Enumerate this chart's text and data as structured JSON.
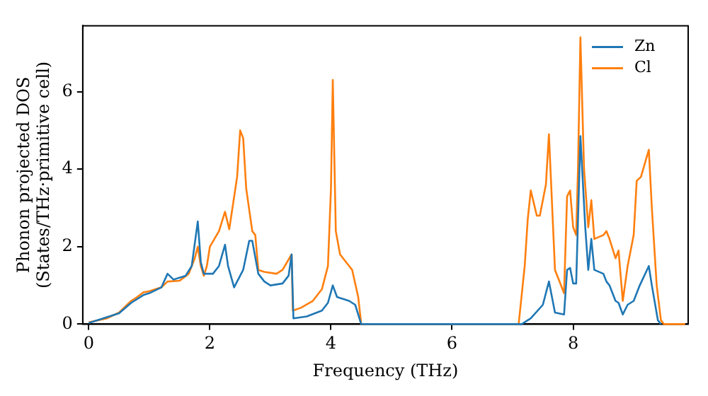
{
  "chart_data": {
    "type": "line",
    "xlabel": "Frequency (THz)",
    "ylabel": "Phonon projected DOS\n(States/THz·primitive cell)",
    "xlim": [
      -0.1,
      9.9
    ],
    "xticks": [
      0,
      2,
      4,
      6,
      8
    ],
    "ylim": [
      0,
      7.7
    ],
    "yticks": [
      0,
      2,
      4,
      6
    ],
    "grid": false,
    "legend": "top right",
    "marker": "none",
    "line_style": "solid",
    "series": [
      {
        "name": "Zn",
        "color": "#1f77b4",
        "x": [
          0,
          0.5,
          0.7,
          0.9,
          1.0,
          1.2,
          1.3,
          1.4,
          1.6,
          1.7,
          1.8,
          1.85,
          1.9,
          2.05,
          2.15,
          2.25,
          2.3,
          2.4,
          2.55,
          2.65,
          2.7,
          2.8,
          2.9,
          3.0,
          3.2,
          3.3,
          3.35,
          3.38,
          3.6,
          3.85,
          3.95,
          4.03,
          4.1,
          4.3,
          4.4,
          4.5,
          7.15,
          7.3,
          7.5,
          7.6,
          7.7,
          7.85,
          7.9,
          7.95,
          8.0,
          8.05,
          8.12,
          8.2,
          8.25,
          8.3,
          8.35,
          8.5,
          8.55,
          8.6,
          8.7,
          8.75,
          8.82,
          8.9,
          9.0,
          9.1,
          9.25,
          9.3,
          9.4,
          9.45
        ],
        "values": [
          0.03,
          0.28,
          0.55,
          0.75,
          0.8,
          0.95,
          1.3,
          1.15,
          1.25,
          1.5,
          2.65,
          1.6,
          1.3,
          1.3,
          1.5,
          2.05,
          1.5,
          0.95,
          1.4,
          2.15,
          2.15,
          1.3,
          1.1,
          1.0,
          1.05,
          1.25,
          1.8,
          0.15,
          0.2,
          0.35,
          0.55,
          1.0,
          0.7,
          0.6,
          0.5,
          0,
          0,
          0.15,
          0.5,
          1.1,
          0.3,
          0.25,
          1.4,
          1.45,
          1.05,
          1.05,
          4.85,
          2.5,
          1.4,
          2.2,
          1.4,
          1.3,
          1.1,
          1.0,
          0.6,
          0.55,
          0.25,
          0.5,
          0.6,
          1.0,
          1.5,
          1.0,
          0.1,
          0
        ]
      },
      {
        "name": "Cl",
        "color": "#ff7f0e",
        "x": [
          0,
          0.3,
          0.5,
          0.6,
          0.7,
          0.8,
          0.9,
          1.0,
          1.2,
          1.3,
          1.5,
          1.65,
          1.75,
          1.8,
          1.85,
          1.9,
          1.95,
          2.0,
          2.15,
          2.25,
          2.32,
          2.45,
          2.5,
          2.55,
          2.6,
          2.7,
          2.75,
          2.8,
          2.9,
          3.1,
          3.2,
          3.35,
          3.37,
          3.5,
          3.7,
          3.85,
          3.95,
          4.0,
          4.03,
          4.08,
          4.15,
          4.3,
          4.35,
          4.45,
          4.5,
          7.1,
          7.2,
          7.25,
          7.3,
          7.4,
          7.45,
          7.55,
          7.6,
          7.7,
          7.85,
          7.9,
          7.95,
          8.0,
          8.05,
          8.08,
          8.12,
          8.18,
          8.25,
          8.3,
          8.35,
          8.5,
          8.55,
          8.6,
          8.7,
          8.75,
          8.82,
          8.9,
          9.0,
          9.05,
          9.12,
          9.25,
          9.3,
          9.38,
          9.45,
          9.5,
          9.85
        ],
        "values": [
          0.05,
          0.15,
          0.3,
          0.45,
          0.6,
          0.7,
          0.82,
          0.85,
          0.95,
          1.1,
          1.12,
          1.3,
          1.7,
          2.0,
          1.5,
          1.25,
          1.5,
          2.0,
          2.4,
          2.9,
          2.45,
          3.8,
          5.0,
          4.8,
          3.5,
          2.4,
          2.3,
          1.4,
          1.35,
          1.3,
          1.4,
          1.8,
          0.35,
          0.42,
          0.6,
          0.9,
          1.5,
          3.5,
          6.3,
          2.4,
          1.8,
          1.5,
          1.4,
          0.7,
          0,
          0,
          1.5,
          2.7,
          3.45,
          2.8,
          2.8,
          3.6,
          4.9,
          1.4,
          0.8,
          3.3,
          3.45,
          2.5,
          2.3,
          4.0,
          7.4,
          4.0,
          2.5,
          3.2,
          2.2,
          2.3,
          2.4,
          2.2,
          1.7,
          1.9,
          0.6,
          1.5,
          2.3,
          3.7,
          3.8,
          4.5,
          3.0,
          1.0,
          0.1,
          0,
          0
        ]
      }
    ]
  }
}
